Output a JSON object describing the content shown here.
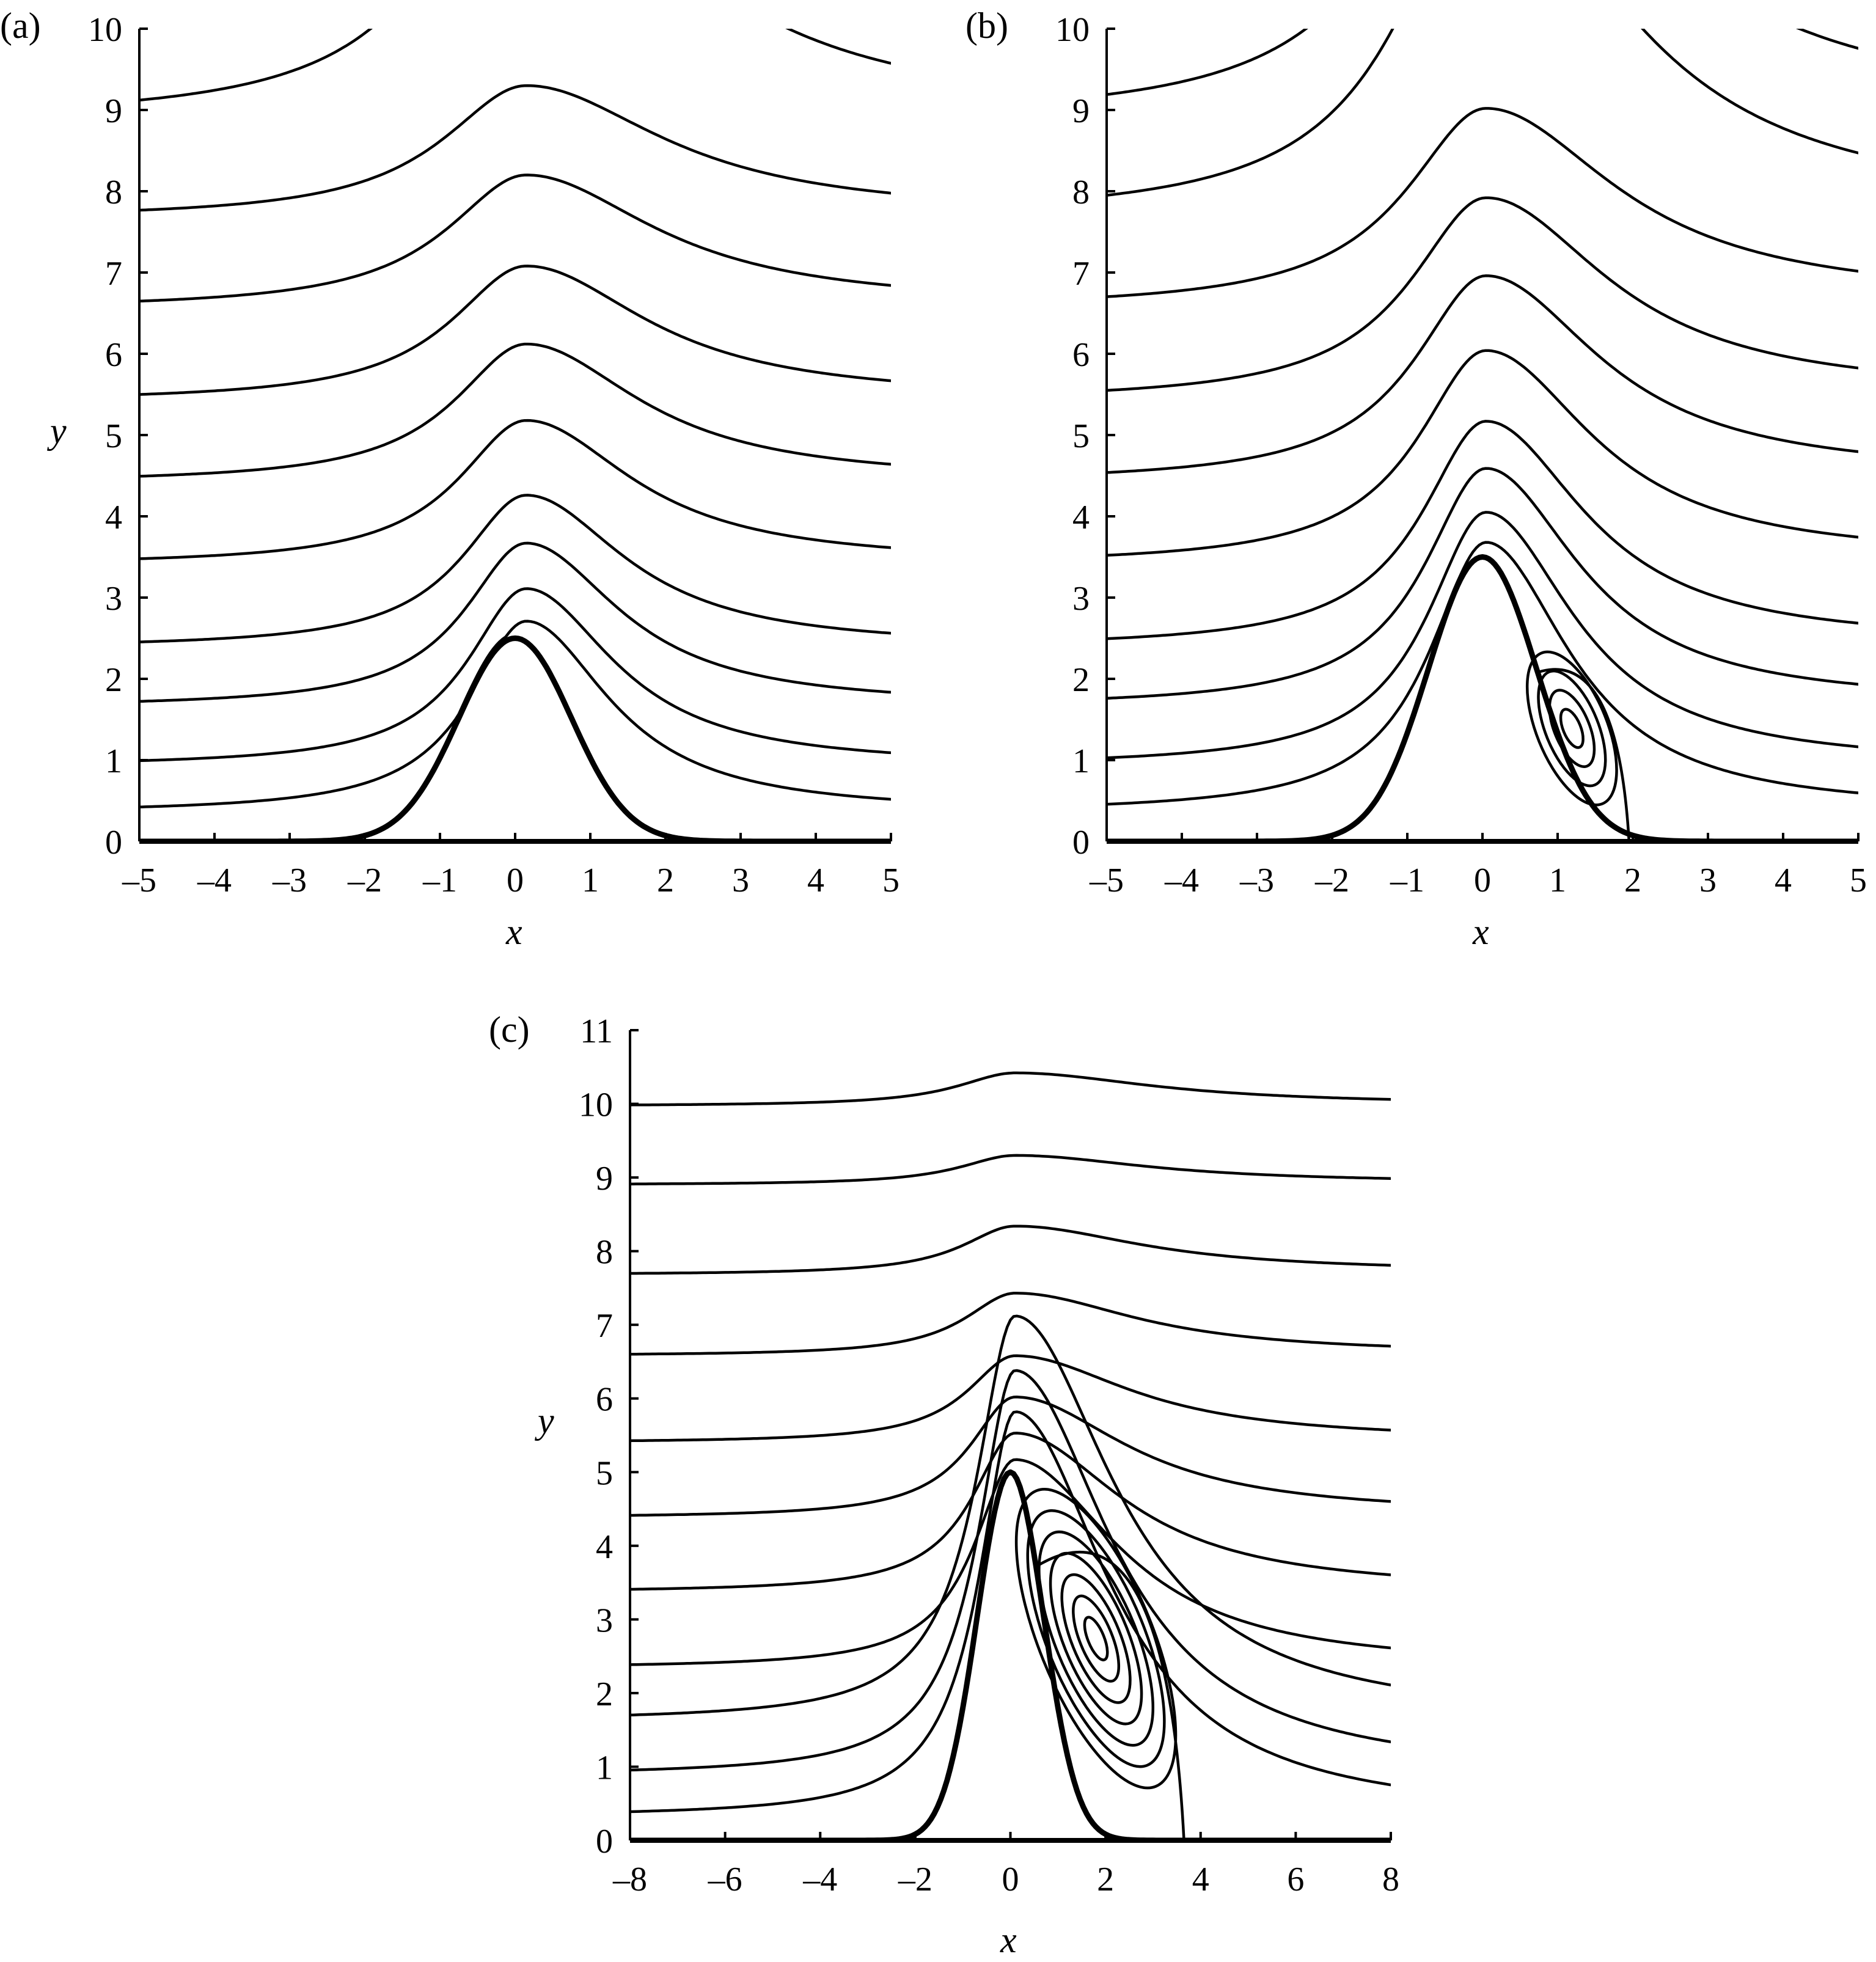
{
  "figure": {
    "panels": [
      {
        "id": "a",
        "label": "(a)",
        "xlabel": "x",
        "ylabel": "y"
      },
      {
        "id": "b",
        "label": "(b)",
        "xlabel": "x",
        "ylabel": "y"
      },
      {
        "id": "c",
        "label": "(c)",
        "xlabel": "x",
        "ylabel": "y"
      }
    ]
  },
  "chart_data": [
    {
      "type": "line",
      "title": "(a)",
      "description": "Streamlines of flow over a Gaussian bump of height 2.5, no separation",
      "xlabel": "x",
      "ylabel": "y",
      "xlim": [
        -5,
        5
      ],
      "ylim": [
        0,
        10
      ],
      "xticks": [
        -5,
        -4,
        -3,
        -2,
        -1,
        0,
        1,
        2,
        3,
        4,
        5
      ],
      "yticks": [
        0,
        1,
        2,
        3,
        4,
        5,
        6,
        7,
        8,
        9,
        10
      ],
      "grid": false,
      "bump": {
        "height": 2.5,
        "center_x": 0,
        "half_width": 0.75
      },
      "streamlines": [
        {
          "inflow_y": 0.35,
          "peak_y": 2.71,
          "outflow_y": 0.35
        },
        {
          "inflow_y": 0.92,
          "peak_y": 3.11,
          "outflow_y": 0.92
        },
        {
          "inflow_y": 1.65,
          "peak_y": 3.67,
          "outflow_y": 1.66
        },
        {
          "inflow_y": 2.38,
          "peak_y": 4.26,
          "outflow_y": 2.38
        },
        {
          "inflow_y": 3.4,
          "peak_y": 5.18,
          "outflow_y": 3.42
        },
        {
          "inflow_y": 4.41,
          "peak_y": 6.12,
          "outflow_y": 4.43
        },
        {
          "inflow_y": 5.41,
          "peak_y": 7.08,
          "outflow_y": 5.44
        },
        {
          "inflow_y": 6.55,
          "peak_y": 8.2,
          "outflow_y": 6.59
        },
        {
          "inflow_y": 7.66,
          "peak_y": 9.3,
          "outflow_y": 7.7
        },
        {
          "inflow_y": 8.87,
          "peak_y": null,
          "outflow_y": 8.91,
          "top_exit_x": [
            -0.4,
            1.1
          ]
        }
      ],
      "peak_x": 0.15
    },
    {
      "type": "line",
      "title": "(b)",
      "description": "Streamlines over a bump of height 3.5 with a lee-side recirculation vortex",
      "xlabel": "x",
      "ylabel": "y",
      "xlim": [
        -5,
        5
      ],
      "ylim": [
        0,
        10
      ],
      "xticks": [
        -5,
        -4,
        -3,
        -2,
        -1,
        0,
        1,
        2,
        3,
        4,
        5
      ],
      "yticks": [
        0,
        1,
        2,
        3,
        4,
        5,
        6,
        7,
        8,
        9,
        10
      ],
      "grid": false,
      "bump": {
        "height": 3.5,
        "center_x": 0,
        "half_width": 0.72
      },
      "streamlines": [
        {
          "inflow_y": 0.35,
          "peak_y": 3.68,
          "outflow_y": 0.37
        },
        {
          "inflow_y": 0.92,
          "peak_y": 4.05,
          "outflow_y": 0.93
        },
        {
          "inflow_y": 1.65,
          "peak_y": 4.59,
          "outflow_y": 1.69
        },
        {
          "inflow_y": 2.38,
          "peak_y": 5.17,
          "outflow_y": 2.43
        },
        {
          "inflow_y": 3.4,
          "peak_y": 6.04,
          "outflow_y": 3.47
        },
        {
          "inflow_y": 4.41,
          "peak_y": 6.96,
          "outflow_y": 4.5
        },
        {
          "inflow_y": 5.41,
          "peak_y": 7.92,
          "outflow_y": 5.5
        },
        {
          "inflow_y": 6.55,
          "peak_y": 9.02,
          "outflow_y": 6.66
        },
        {
          "inflow_y": 7.66,
          "peak_y": null,
          "outflow_y": 7.77,
          "top_exit_x": [
            -0.08,
            0.39
          ]
        },
        {
          "inflow_y": 8.87,
          "peak_y": null,
          "outflow_y": 8.98,
          "top_exit_x": [
            -0.69,
            1.97
          ]
        }
      ],
      "peak_x": 0.05,
      "vortex": {
        "center": [
          1.19,
          1.39
        ],
        "separation_x": 0.6,
        "reattachment_x": 1.95,
        "top_y": 2.3,
        "n_closed_contours": 4
      }
    },
    {
      "type": "line",
      "title": "(c)",
      "description": "Streamlines over a bump of height 5 with a large lee-side recirculation vortex",
      "xlabel": "x",
      "ylabel": "y",
      "xlim": [
        -8,
        8
      ],
      "ylim": [
        0,
        11
      ],
      "xticks": [
        -8,
        -6,
        -4,
        -2,
        0,
        2,
        4,
        6,
        8
      ],
      "yticks": [
        0,
        1,
        2,
        3,
        4,
        5,
        6,
        7,
        8,
        9,
        10,
        11
      ],
      "grid": false,
      "bump": {
        "height": 5.0,
        "center_x": 0,
        "half_width": 0.7
      },
      "streamlines": [
        {
          "inflow_y": 0.32,
          "peak_y": null,
          "outflow_y": 0.31
        },
        {
          "inflow_y": 0.88,
          "peak_y": null,
          "outflow_y": 0.87
        },
        {
          "inflow_y": 1.62,
          "peak_y": null,
          "outflow_y": 1.61
        },
        {
          "inflow_y": 2.34,
          "peak_y": 5.17,
          "outflow_y": 2.34
        },
        {
          "inflow_y": 3.37,
          "peak_y": 5.53,
          "outflow_y": 3.38
        },
        {
          "inflow_y": 4.38,
          "peak_y": 6.02,
          "outflow_y": 4.42
        },
        {
          "inflow_y": 5.4,
          "peak_y": 6.58,
          "outflow_y": 5.43
        },
        {
          "inflow_y": 6.58,
          "peak_y": 7.43,
          "outflow_y": 6.6
        },
        {
          "inflow_y": 7.68,
          "peak_y": 8.34,
          "outflow_y": 7.72
        },
        {
          "inflow_y": 8.9,
          "peak_y": 9.3,
          "outflow_y": 8.93
        },
        {
          "inflow_y": 9.97,
          "peak_y": 10.42,
          "outflow_y": 9.99
        }
      ],
      "top_exit_x": [
        -1.09,
        -0.59,
        -0.23,
        1.83,
        2.97,
        3.92
      ],
      "peak_x": 0.1,
      "vortex": {
        "center": [
          1.8,
          2.74
        ],
        "separation_x": 0.4,
        "reattachment_x": 3.65,
        "top_y": 4.7,
        "n_closed_contours": 7
      }
    }
  ]
}
